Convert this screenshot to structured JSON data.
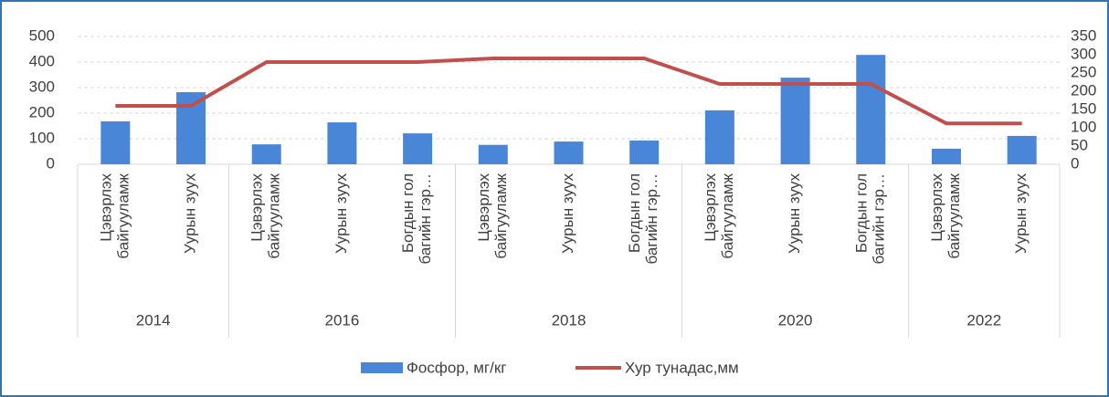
{
  "chart_data": {
    "type": "bar_line",
    "categories": [
      [
        "Цэвэрлэх",
        "байгууламж"
      ],
      [
        "Уурын зуух"
      ],
      [
        "Цэвэрлэх",
        "байгууламж"
      ],
      [
        "Уурын зуух"
      ],
      [
        "Богдын гол",
        "багийн гэр…"
      ],
      [
        "Цэвэрлэх",
        "байгууламж"
      ],
      [
        "Уурын зуух"
      ],
      [
        "Богдын гол",
        "багийн гэр…"
      ],
      [
        "Цэвэрлэх",
        "байгууламж"
      ],
      [
        "Уурын зуух"
      ],
      [
        "Богдын гол",
        "багийн гэр…"
      ],
      [
        "Цэвэрлэх",
        "байгууламж"
      ],
      [
        "Уурын зуух"
      ]
    ],
    "groups": [
      {
        "label": "2014",
        "count": 2
      },
      {
        "label": "2016",
        "count": 3
      },
      {
        "label": "2018",
        "count": 3
      },
      {
        "label": "2020",
        "count": 3
      },
      {
        "label": "2022",
        "count": 2
      }
    ],
    "series": [
      {
        "name": "Фосфор, мг/кг",
        "type": "bar",
        "color": "#4a86d8",
        "values": [
          168,
          282,
          78,
          164,
          121,
          76,
          89,
          93,
          211,
          339,
          428,
          61,
          111
        ]
      },
      {
        "name": "Хур тунадас,мм",
        "type": "line",
        "axis": "y2",
        "color": "#c0504d",
        "values": [
          160,
          160,
          280,
          280,
          280,
          290,
          290,
          290,
          220,
          220,
          220,
          112,
          112
        ]
      }
    ],
    "ylim": [
      0,
      500
    ],
    "yticks": [
      0,
      100,
      200,
      300,
      400,
      500
    ],
    "y2lim": [
      0,
      350
    ],
    "y2ticks": [
      0,
      50,
      100,
      150,
      200,
      250,
      300,
      350
    ],
    "grid": true,
    "legend": "bottom"
  }
}
